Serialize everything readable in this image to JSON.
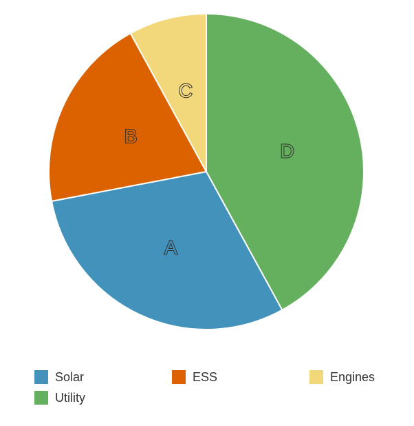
{
  "chart_data": {
    "type": "pie",
    "slices": [
      {
        "label": "A",
        "name": "Solar",
        "value": 30,
        "color": "#4292bb"
      },
      {
        "label": "B",
        "name": "ESS",
        "value": 20,
        "color": "#dc6200"
      },
      {
        "label": "C",
        "name": "Engines",
        "value": 8,
        "color": "#f2d87a"
      },
      {
        "label": "D",
        "name": "Utility",
        "value": 42,
        "color": "#64b05e"
      }
    ],
    "legend_position": "bottom"
  }
}
